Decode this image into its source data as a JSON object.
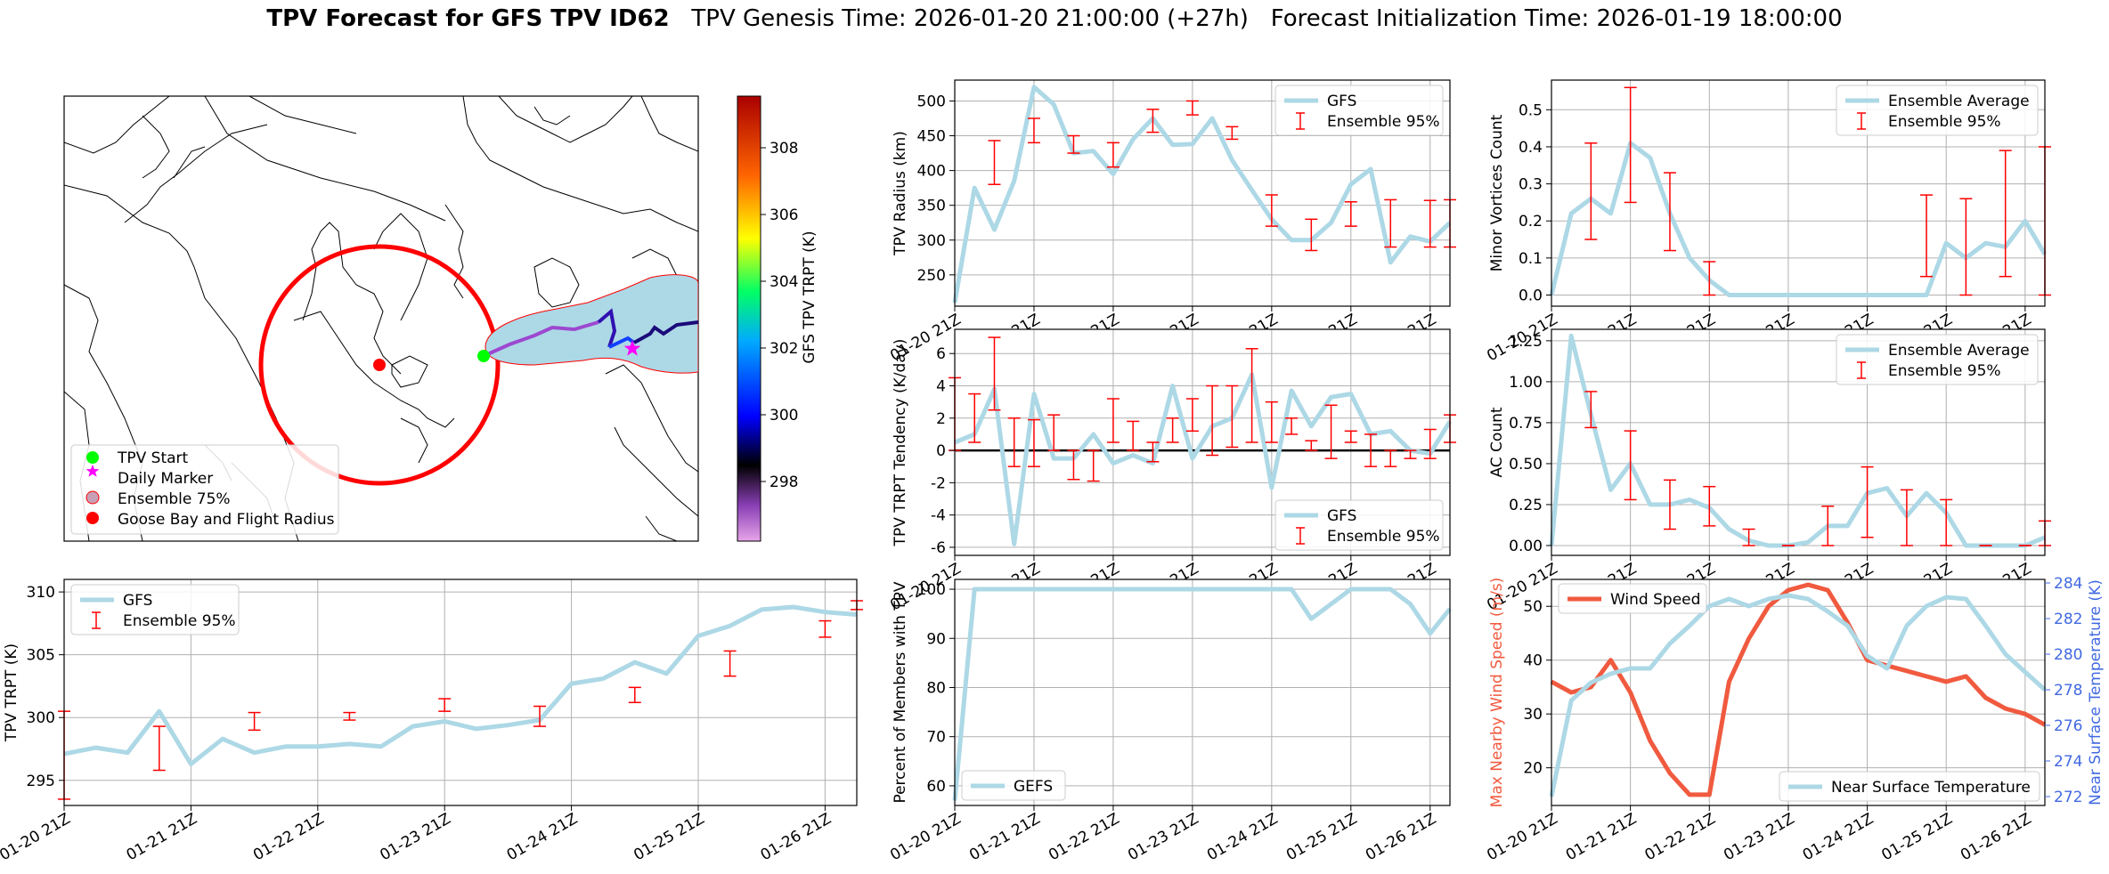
{
  "header": {
    "title_bold": "TPV Forecast for GFS TPV ID62",
    "genesis": "TPV Genesis Time: 2026-01-20 21:00:00 (+27h)",
    "init": "Forecast Initialization Time: 2026-01-19 18:00:00"
  },
  "colors": {
    "gfs": "#add8e6",
    "err": "#ff0000",
    "wind": "#f05a3f",
    "temp": "#add8e6",
    "right_axis": "#4169e1"
  },
  "x_tick_labels": [
    "01-20 21Z",
    "01-21 21Z",
    "01-22 21Z",
    "01-23 21Z",
    "01-24 21Z",
    "01-25 21Z",
    "01-26 21Z"
  ],
  "map": {
    "colorbar_label": "GFS TPV TRPT (K)",
    "colorbar_ticks": [
      "308",
      "306",
      "304",
      "302",
      "300",
      "298"
    ],
    "legend": [
      "TPV Start",
      "Daily Marker",
      "Ensemble 75%",
      "Goose Bay and Flight Radius"
    ]
  },
  "chart_data": [
    {
      "id": "radius",
      "type": "line",
      "ylabel": "TPV Radius (km)",
      "xlim": [
        0,
        50
      ],
      "ylim": [
        205,
        530
      ],
      "yticks": [
        250,
        300,
        350,
        400,
        450,
        500
      ],
      "legend_loc": "upper right",
      "legend": [
        "GFS",
        "Ensemble 95%"
      ],
      "series": [
        {
          "name": "GFS",
          "x": [
            0,
            2,
            4,
            6,
            8,
            10,
            12,
            14,
            16,
            18,
            20,
            22,
            24,
            26,
            28,
            30,
            32,
            34,
            36,
            38,
            40,
            42,
            44,
            46,
            48,
            50
          ],
          "values": [
            210,
            375,
            315,
            385,
            520,
            495,
            425,
            428,
            395,
            445,
            475,
            437,
            438,
            475,
            415,
            372,
            330,
            300,
            300,
            325,
            380,
            402,
            268,
            305,
            298,
            325
          ]
        }
      ],
      "errorbars": {
        "x": [
          4,
          8,
          12,
          16,
          20,
          24,
          28,
          32,
          36,
          40,
          44,
          48,
          50
        ],
        "low": [
          380,
          440,
          425,
          405,
          455,
          480,
          445,
          320,
          285,
          320,
          290,
          290,
          290
        ],
        "high": [
          443,
          475,
          450,
          440,
          488,
          500,
          463,
          365,
          330,
          355,
          358,
          357,
          358
        ]
      }
    },
    {
      "id": "minor",
      "type": "line",
      "ylabel": "Minor Vortices Count",
      "xlim": [
        0,
        50
      ],
      "ylim": [
        -0.03,
        0.58
      ],
      "yticks": [
        0.0,
        0.1,
        0.2,
        0.3,
        0.4,
        0.5
      ],
      "legend_loc": "upper right",
      "legend": [
        "Ensemble Average",
        "Ensemble 95%"
      ],
      "series": [
        {
          "name": "Ensemble Average",
          "x": [
            0,
            2,
            4,
            6,
            8,
            10,
            12,
            14,
            16,
            18,
            20,
            22,
            24,
            26,
            28,
            30,
            32,
            34,
            36,
            38,
            40,
            42,
            44,
            46,
            48,
            50
          ],
          "values": [
            0.0,
            0.22,
            0.26,
            0.22,
            0.41,
            0.37,
            0.22,
            0.1,
            0.04,
            0.0,
            0.0,
            0.0,
            0.0,
            0.0,
            0.0,
            0.0,
            0.0,
            0.0,
            0.0,
            0.0,
            0.14,
            0.1,
            0.14,
            0.13,
            0.2,
            0.11
          ]
        }
      ],
      "errorbars": {
        "x": [
          4,
          8,
          12,
          16,
          38,
          42,
          46,
          50
        ],
        "low": [
          0.15,
          0.25,
          0.12,
          0.0,
          0.05,
          0.0,
          0.05,
          0.0
        ],
        "high": [
          0.41,
          0.56,
          0.33,
          0.09,
          0.27,
          0.26,
          0.39,
          0.4
        ]
      }
    },
    {
      "id": "tendency",
      "type": "line",
      "ylabel": "TPV TRPT Tendency (K/day)",
      "xlim": [
        0,
        50
      ],
      "ylim": [
        -6.5,
        7.5
      ],
      "yticks": [
        -6,
        -4,
        -2,
        0,
        2,
        4,
        6
      ],
      "zero_line": true,
      "legend_loc": "lower right",
      "legend": [
        "GFS",
        "Ensemble 95%"
      ],
      "series": [
        {
          "name": "GFS",
          "x": [
            0,
            2,
            4,
            6,
            8,
            10,
            12,
            14,
            16,
            18,
            20,
            22,
            24,
            26,
            28,
            30,
            32,
            34,
            36,
            38,
            40,
            42,
            44,
            46,
            48,
            50
          ],
          "values": [
            0.5,
            1.0,
            3.8,
            -5.8,
            3.5,
            -0.5,
            -0.5,
            1.0,
            -0.8,
            -0.3,
            -0.8,
            4.0,
            -0.5,
            1.5,
            2.0,
            4.7,
            -2.3,
            3.7,
            1.5,
            3.3,
            3.5,
            1.0,
            1.2,
            0.0,
            -0.2,
            1.8
          ]
        }
      ],
      "errorbars": {
        "x": [
          0,
          2,
          4,
          6,
          8,
          10,
          12,
          14,
          16,
          18,
          20,
          22,
          24,
          26,
          28,
          30,
          32,
          34,
          36,
          38,
          40,
          42,
          44,
          46,
          48,
          50
        ],
        "low": [
          0.0,
          0.5,
          2.5,
          -1.0,
          -1.0,
          0.0,
          -1.8,
          -1.9,
          0.5,
          0.0,
          -0.7,
          0.5,
          1.2,
          -0.3,
          0.2,
          0.5,
          0.5,
          1.0,
          0.0,
          -0.5,
          0.5,
          -1.0,
          -1.0,
          -0.5,
          -0.5,
          0.5
        ],
        "high": [
          4.5,
          3.5,
          7.0,
          2.0,
          1.9,
          2.2,
          0.0,
          0.0,
          3.2,
          1.8,
          0.5,
          2.0,
          3.2,
          4.0,
          4.0,
          6.3,
          3.0,
          2.0,
          0.6,
          2.8,
          1.2,
          1.0,
          0.0,
          0.0,
          1.3,
          2.2
        ]
      }
    },
    {
      "id": "ac",
      "type": "line",
      "ylabel": "AC Count",
      "xlim": [
        0,
        50
      ],
      "ylim": [
        -0.06,
        1.32
      ],
      "yticks": [
        0.0,
        0.25,
        0.5,
        0.75,
        1.0,
        1.25
      ],
      "legend_loc": "upper right",
      "legend": [
        "Ensemble Average",
        "Ensemble 95%"
      ],
      "series": [
        {
          "name": "Ensemble Average",
          "x": [
            0,
            2,
            4,
            6,
            8,
            10,
            12,
            14,
            16,
            18,
            20,
            22,
            24,
            26,
            28,
            30,
            32,
            34,
            36,
            38,
            40,
            42,
            44,
            46,
            48,
            50
          ],
          "values": [
            0.0,
            1.28,
            0.8,
            0.34,
            0.5,
            0.25,
            0.25,
            0.28,
            0.23,
            0.1,
            0.03,
            0.0,
            0.0,
            0.02,
            0.12,
            0.12,
            0.32,
            0.35,
            0.18,
            0.32,
            0.2,
            0.0,
            0.0,
            0.0,
            0.0,
            0.05
          ]
        }
      ],
      "errorbars": {
        "x": [
          4,
          8,
          12,
          16,
          20,
          24,
          28,
          32,
          36,
          40,
          44,
          48,
          50
        ],
        "low": [
          0.72,
          0.28,
          0.1,
          0.12,
          0.0,
          0.0,
          0.0,
          0.05,
          0.0,
          0.0,
          0.0,
          0.0,
          0.0
        ],
        "high": [
          0.94,
          0.7,
          0.4,
          0.36,
          0.1,
          0.0,
          0.24,
          0.48,
          0.34,
          0.28,
          0.0,
          0.0,
          0.15
        ]
      }
    },
    {
      "id": "trpt",
      "type": "line",
      "ylabel": "TPV TRPT (K)",
      "xlim": [
        0,
        50
      ],
      "ylim": [
        293,
        311
      ],
      "yticks": [
        295,
        300,
        305,
        310
      ],
      "legend_loc": "upper left",
      "legend": [
        "GFS",
        "Ensemble 95%"
      ],
      "series": [
        {
          "name": "GFS",
          "x": [
            0,
            2,
            4,
            6,
            8,
            10,
            12,
            14,
            16,
            18,
            20,
            22,
            24,
            26,
            28,
            30,
            32,
            34,
            36,
            38,
            40,
            42,
            44,
            46,
            48,
            50
          ],
          "values": [
            297.1,
            297.6,
            297.2,
            300.5,
            296.3,
            298.3,
            297.2,
            297.7,
            297.7,
            297.9,
            297.7,
            299.3,
            299.7,
            299.1,
            299.4,
            299.8,
            302.7,
            303.1,
            304.4,
            303.5,
            306.5,
            307.3,
            308.6,
            308.8,
            308.4,
            308.2
          ]
        }
      ],
      "errorbars": {
        "x": [
          0,
          6,
          12,
          18,
          24,
          30,
          36,
          42,
          48,
          50
        ],
        "low": [
          293.5,
          295.8,
          299.0,
          299.8,
          300.5,
          299.3,
          301.2,
          303.3,
          306.4,
          308.6
        ],
        "high": [
          300.5,
          299.3,
          300.4,
          300.4,
          301.5,
          300.9,
          302.4,
          305.3,
          307.7,
          309.3
        ]
      }
    },
    {
      "id": "percent",
      "type": "line",
      "ylabel": "Percent of Members with TPV",
      "xlim": [
        0,
        50
      ],
      "ylim": [
        56,
        102
      ],
      "yticks": [
        60,
        70,
        80,
        90,
        100
      ],
      "legend_loc": "lower left",
      "legend": [
        "GEFS"
      ],
      "series": [
        {
          "name": "GEFS",
          "x": [
            0,
            2,
            4,
            6,
            8,
            10,
            12,
            14,
            16,
            18,
            20,
            22,
            24,
            26,
            28,
            30,
            32,
            34,
            36,
            38,
            40,
            42,
            44,
            46,
            48,
            50
          ],
          "values": [
            57,
            100,
            100,
            100,
            100,
            100,
            100,
            100,
            100,
            100,
            100,
            100,
            100,
            100,
            100,
            100,
            100,
            100,
            94,
            97,
            100,
            100,
            100,
            97,
            91,
            96
          ]
        }
      ]
    },
    {
      "id": "wind_temp",
      "type": "line",
      "ylabel": "Max Nearby Wind Speed (m/s)",
      "y2label": "Near Surface Temperature (K)",
      "xlim": [
        0,
        50
      ],
      "ylim": [
        13,
        55
      ],
      "yticks": [
        20,
        30,
        40,
        50
      ],
      "y2lim": [
        271.5,
        284.2
      ],
      "y2ticks": [
        272,
        274,
        276,
        278,
        280,
        282,
        284
      ],
      "legend": [
        "Wind Speed",
        "Near Surface Temperature"
      ],
      "series": [
        {
          "name": "Wind Speed",
          "axis": "left",
          "x": [
            0,
            2,
            4,
            6,
            8,
            10,
            12,
            14,
            16,
            18,
            20,
            22,
            24,
            26,
            28,
            30,
            32,
            34,
            36,
            38,
            40,
            42,
            44,
            46,
            48,
            50
          ],
          "values": [
            36,
            34,
            35,
            40,
            34,
            25,
            19,
            15,
            15,
            36,
            44,
            50,
            53,
            54,
            53,
            47,
            40,
            39,
            38,
            37,
            36,
            37,
            33,
            31,
            30,
            28
          ]
        },
        {
          "name": "Near Surface Temperature",
          "axis": "right",
          "x": [
            0,
            2,
            4,
            6,
            8,
            10,
            12,
            14,
            16,
            18,
            20,
            22,
            24,
            26,
            28,
            30,
            32,
            34,
            36,
            38,
            40,
            42,
            44,
            46,
            48,
            50
          ],
          "values": [
            272,
            277.4,
            278.4,
            278.9,
            279.2,
            279.2,
            280.6,
            281.6,
            282.7,
            283.1,
            282.7,
            283.1,
            283.3,
            283.1,
            282.4,
            281.6,
            279.9,
            279.2,
            281.6,
            282.7,
            283.2,
            283.1,
            281.6,
            280.0,
            279.0,
            278.0
          ]
        }
      ]
    }
  ]
}
